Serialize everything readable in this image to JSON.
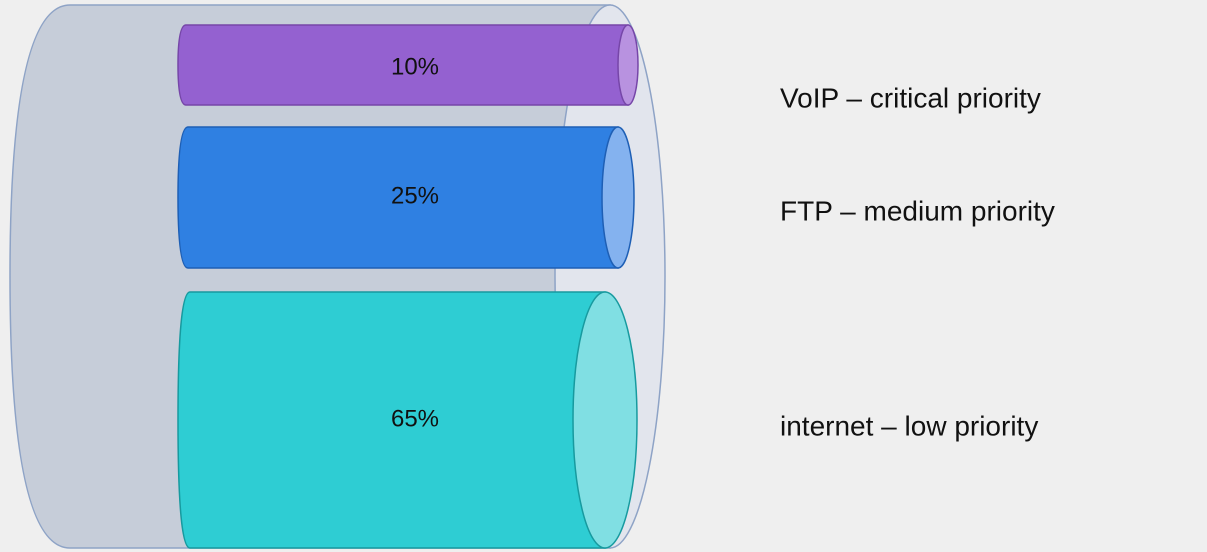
{
  "segments": [
    {
      "share": "10%",
      "label": "VoIP – critical priority"
    },
    {
      "share": "25%",
      "label": "FTP – medium priority"
    },
    {
      "share": "65%",
      "label": "internet – low priority"
    }
  ]
}
